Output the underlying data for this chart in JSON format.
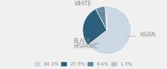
{
  "labels": [
    "WHITE",
    "ASIAN",
    "BLACK",
    "HISPANIC"
  ],
  "sizes": [
    64.3,
    27.9,
    6.4,
    1.3
  ],
  "colors": [
    "#ccd7e4",
    "#2d5f7c",
    "#6988a0",
    "#b5c4ce"
  ],
  "legend_labels": [
    "64.3%",
    "27.9%",
    "6.4%",
    "1.3%"
  ],
  "startangle": 90,
  "bg_color": "#f0f0f0",
  "text_color": "#888888",
  "label_fontsize": 5.5,
  "legend_fontsize": 5.0
}
